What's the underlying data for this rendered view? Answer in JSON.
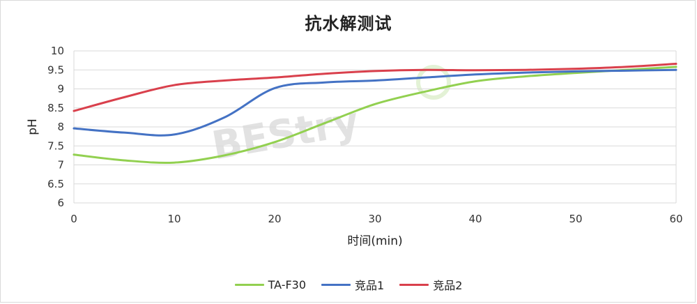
{
  "chart_data": {
    "type": "line",
    "title": "抗水解测试",
    "xlabel": "时间(min)",
    "ylabel": "pH",
    "xlim": [
      0,
      60
    ],
    "ylim": [
      6,
      10
    ],
    "xticks": [
      0,
      10,
      20,
      30,
      40,
      50,
      60
    ],
    "yticks": [
      6,
      6.5,
      7,
      7.5,
      8,
      8.5,
      9,
      9.5,
      10
    ],
    "xtick_labels": [
      "0",
      "10",
      "20",
      "30",
      "40",
      "50",
      "60"
    ],
    "ytick_labels": [
      "6",
      "6.5",
      "7",
      "7.5",
      "8",
      "8.5",
      "9",
      "9.5",
      "10"
    ],
    "grid": "horizontal",
    "legend_position": "bottom",
    "series": [
      {
        "name": "TA-F30",
        "color": "#92d050",
        "points": [
          [
            0,
            7.27
          ],
          [
            5,
            7.12
          ],
          [
            10,
            7.06
          ],
          [
            15,
            7.25
          ],
          [
            20,
            7.6
          ],
          [
            25,
            8.1
          ],
          [
            30,
            8.6
          ],
          [
            35,
            8.93
          ],
          [
            40,
            9.2
          ],
          [
            45,
            9.33
          ],
          [
            50,
            9.42
          ],
          [
            55,
            9.5
          ],
          [
            60,
            9.58
          ]
        ]
      },
      {
        "name": "竞品1",
        "color": "#4472c4",
        "points": [
          [
            0,
            7.96
          ],
          [
            5,
            7.85
          ],
          [
            10,
            7.8
          ],
          [
            15,
            8.25
          ],
          [
            20,
            9.02
          ],
          [
            25,
            9.17
          ],
          [
            30,
            9.22
          ],
          [
            35,
            9.3
          ],
          [
            40,
            9.38
          ],
          [
            45,
            9.43
          ],
          [
            50,
            9.46
          ],
          [
            55,
            9.48
          ],
          [
            60,
            9.5
          ]
        ]
      },
      {
        "name": "竞品2",
        "color": "#d9404c",
        "points": [
          [
            0,
            8.42
          ],
          [
            5,
            8.78
          ],
          [
            10,
            9.1
          ],
          [
            15,
            9.22
          ],
          [
            20,
            9.3
          ],
          [
            25,
            9.4
          ],
          [
            30,
            9.47
          ],
          [
            35,
            9.5
          ],
          [
            40,
            9.49
          ],
          [
            45,
            9.5
          ],
          [
            50,
            9.53
          ],
          [
            55,
            9.58
          ],
          [
            60,
            9.66
          ]
        ]
      }
    ],
    "watermark": "BEStry"
  }
}
